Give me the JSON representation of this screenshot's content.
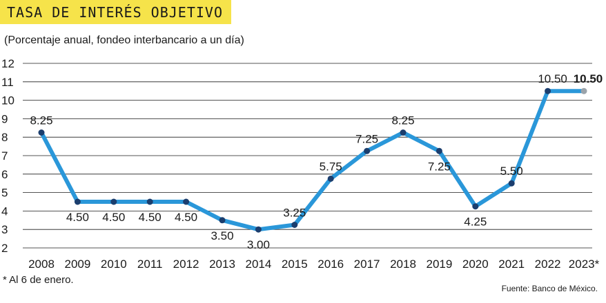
{
  "title": "TASA DE INTERÉS OBJETIVO",
  "subtitle": "(Porcentaje anual, fondeo interbancario a un día)",
  "footnote": "* Al 6 de enero.",
  "source": "Fuente: Banco de México.",
  "colors": {
    "title_bg": "#f6e34a",
    "line": "#2a97d9",
    "point": "#1b3e6e",
    "last_point": "#9aa3aa",
    "grid": "#1a1a1a",
    "text": "#1a1a1a"
  },
  "chart_data": {
    "type": "line",
    "title": "TASA DE INTERÉS OBJETIVO",
    "subtitle": "(Porcentaje anual, fondeo interbancario a un día)",
    "xlabel": "",
    "ylabel": "",
    "ylim": [
      2,
      12
    ],
    "yticks": [
      "2",
      "3",
      "4",
      "5",
      "6",
      "7",
      "8",
      "9",
      "10",
      "11",
      "12"
    ],
    "grid": true,
    "categories": [
      "2008",
      "2009",
      "2010",
      "2011",
      "2012",
      "2013",
      "2014",
      "2015",
      "2016",
      "2017",
      "2018",
      "2019",
      "2020",
      "2021",
      "2022",
      "2023*"
    ],
    "values": [
      8.25,
      4.5,
      4.5,
      4.5,
      4.5,
      3.5,
      3.0,
      3.25,
      5.75,
      7.25,
      8.25,
      7.25,
      4.25,
      5.5,
      10.5,
      10.5
    ],
    "labels": [
      "8.25",
      "4.50",
      "4.50",
      "4.50",
      "4.50",
      "3.50",
      "3.00",
      "3.25",
      "5.75",
      "7.25",
      "8.25",
      "7.25",
      "4.25",
      "5.50",
      "10.50",
      "10.50"
    ],
    "label_positions": [
      "above",
      "below",
      "below",
      "below",
      "below",
      "below",
      "below",
      "above",
      "above",
      "above",
      "above",
      "below",
      "below",
      "above",
      "above",
      "above"
    ]
  }
}
